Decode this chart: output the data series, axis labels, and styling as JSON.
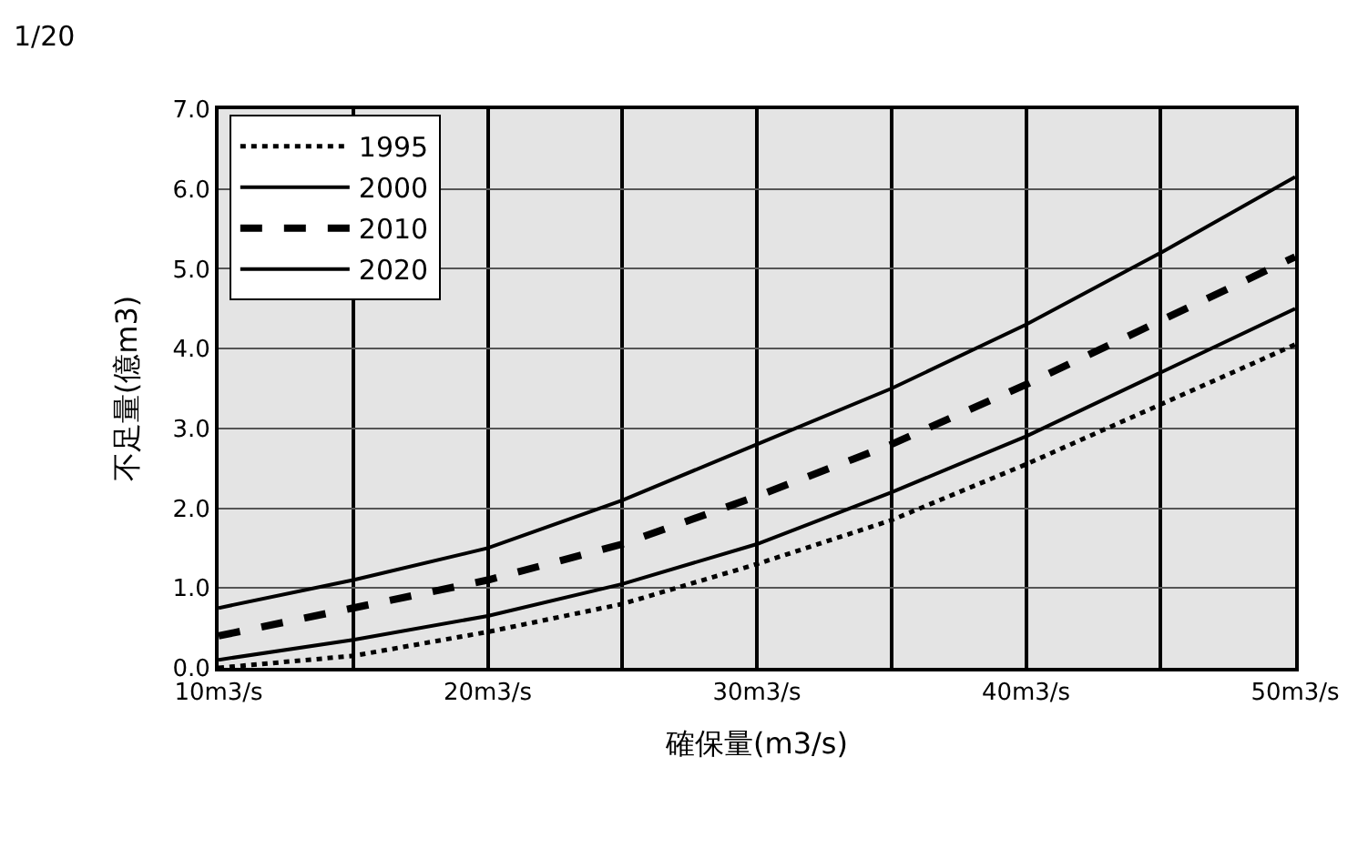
{
  "chart_data": {
    "type": "line",
    "title": "1/20",
    "xlabel": "確保量(m3/s)",
    "ylabel": "不足量(億m3)",
    "categories": [
      "10m3/s",
      null,
      "20m3/s",
      null,
      "30m3/s",
      null,
      "40m3/s",
      null,
      "50m3/s"
    ],
    "series": [
      {
        "name": "1995",
        "color": "#000000",
        "line_style": "dotted",
        "values": [
          0.0,
          0.15,
          0.45,
          0.8,
          1.3,
          1.85,
          2.55,
          3.3,
          4.05
        ]
      },
      {
        "name": "2000",
        "color": "#000000",
        "line_style": "solid",
        "values": [
          0.1,
          0.35,
          0.65,
          1.05,
          1.55,
          2.2,
          2.9,
          3.7,
          4.5
        ]
      },
      {
        "name": "2010",
        "color": "#000000",
        "line_style": "dashed",
        "values": [
          0.4,
          0.75,
          1.1,
          1.55,
          2.15,
          2.8,
          3.55,
          4.35,
          5.15
        ]
      },
      {
        "name": "2020",
        "color": "#000000",
        "line_style": "solid",
        "values": [
          0.75,
          1.1,
          1.5,
          2.1,
          2.8,
          3.5,
          4.3,
          5.2,
          6.15
        ]
      }
    ],
    "ylim": [
      0,
      7
    ],
    "yticks": [
      {
        "value": 0,
        "label": "0.0"
      },
      {
        "value": 1,
        "label": "1.0"
      },
      {
        "value": 2,
        "label": "2.0"
      },
      {
        "value": 3,
        "label": "3.0"
      },
      {
        "value": 4,
        "label": "4.0"
      },
      {
        "value": 5,
        "label": "5.0"
      },
      {
        "value": 6,
        "label": "6.0"
      },
      {
        "value": 7,
        "label": "7.0"
      }
    ],
    "grid": true,
    "legend": "top left",
    "marker": "none"
  }
}
